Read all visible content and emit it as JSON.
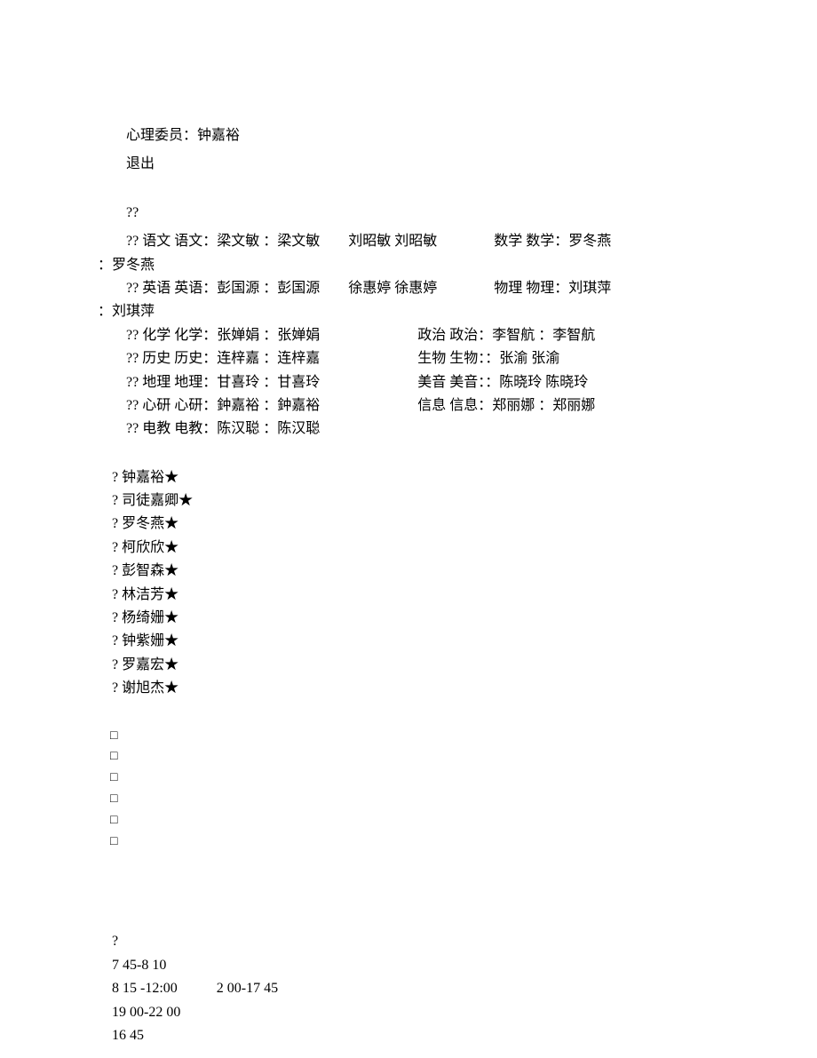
{
  "header": {
    "committee": "心理委员：钟嘉裕",
    "exit": "退出"
  },
  "teachers": {
    "row0": "??",
    "rows": [
      {
        "left": "?? 语文 语文：梁文敏 ：梁文敏",
        "mid": "刘昭敏 刘昭敏",
        "right": "数学 数学：罗冬燕 ：罗冬燕",
        "wrap": true,
        "gap1": "spacer-sm",
        "gap2": "spacer-md"
      },
      {
        "left": "?? 英语 英语：彭国源 ：彭国源",
        "mid": "徐惠婷 徐惠婷",
        "right": "物理 物理：刘琪萍 ：刘琪萍",
        "wrap": true,
        "gap1": "spacer-sm",
        "gap2": "spacer-md"
      },
      {
        "left": "?? 化学 化学：张婵娟 ：张婵娟",
        "right": "政治 政治：李智航 ：李智航",
        "wrap": false
      },
      {
        "left": "?? 历史 历史：连梓嘉 ：连梓嘉",
        "right": "生物 生物：：张渝 张渝",
        "wrap": false
      },
      {
        "left": "?? 地理 地理：甘喜玲 ：甘喜玲",
        "right": "美音 美音：：陈晓玲 陈晓玲",
        "wrap": false
      },
      {
        "left": "?? 心研 心研：鈡嘉裕 ：鈡嘉裕",
        "right": "信息 信息：郑丽娜 ：郑丽娜",
        "wrap": false
      },
      {
        "left": "?? 电教 电教：陈汉聪 ：陈汉聪",
        "right": "",
        "wrap": false
      }
    ]
  },
  "students": [
    "? 钟嘉裕★",
    "? 司徒嘉卿★",
    "? 罗冬燕★",
    "? 柯欣欣★",
    "? 彭智森★",
    "? 林洁芳★",
    "? 杨绮姗★",
    "? 钟紫姗★",
    "? 罗嘉宏★",
    "? 谢旭杰★"
  ],
  "boxes": [
    "□",
    "□",
    "□",
    "□",
    "□",
    "□"
  ],
  "times": {
    "q": "?",
    "t1": "7 45-8 10",
    "t2a": "8 15 -12:00",
    "t2b": "2 00-17 45",
    "t3": "19 00-22 00",
    "t4": "16 45"
  }
}
